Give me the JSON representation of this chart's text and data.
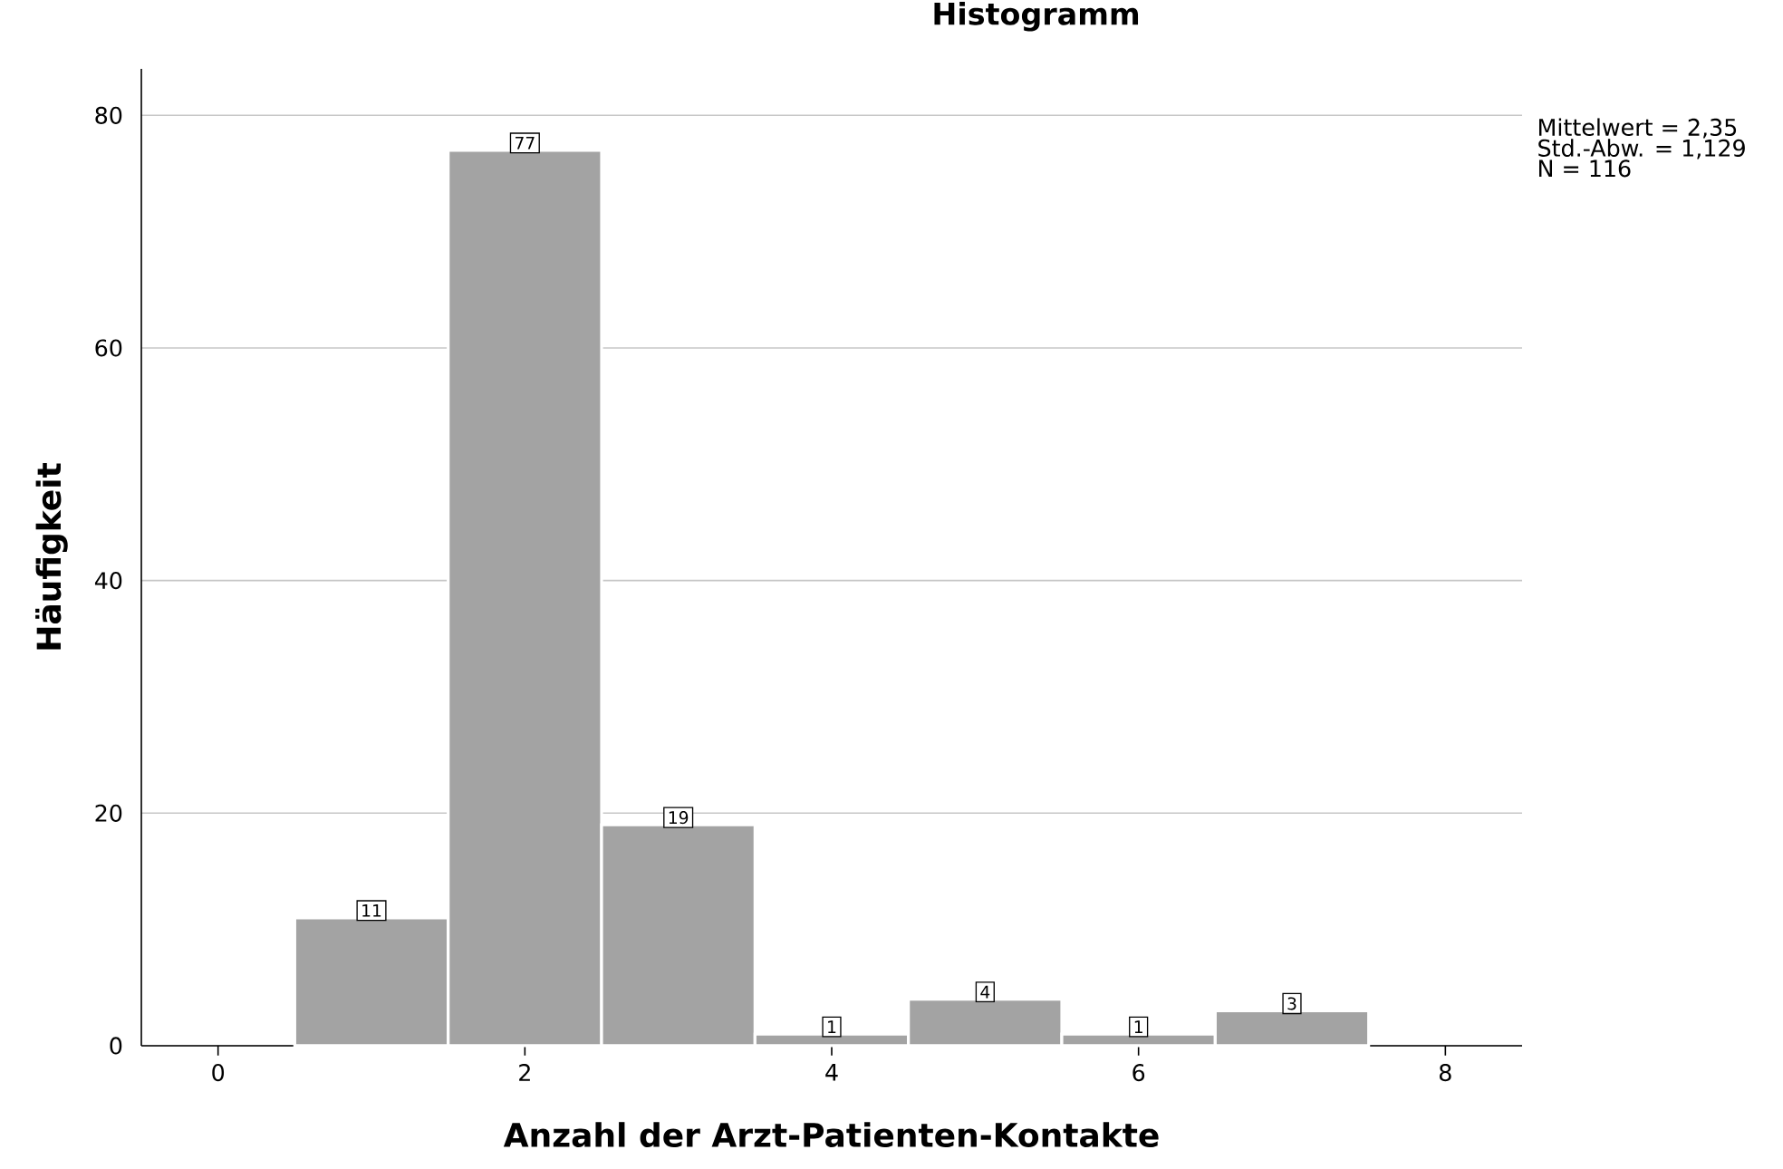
{
  "chart_data": {
    "type": "histogram",
    "title": "Histogramm",
    "xlabel": "Anzahl der Arzt-Patienten-Kontakte",
    "ylabel": "Häufigkeit",
    "bins": [
      0.5,
      1.5,
      2.5,
      3.5,
      4.5,
      5.5,
      6.5,
      7.5
    ],
    "values": [
      11,
      77,
      19,
      1,
      4,
      1,
      3
    ],
    "color": "#a3a3a3",
    "xlim": [
      -0.5,
      8.5
    ],
    "ylim": [
      0,
      84
    ],
    "xticks": [
      0,
      2,
      4,
      6,
      8
    ],
    "yticks": [
      0,
      20,
      40,
      60,
      80
    ],
    "grid": "y",
    "data_labels": true,
    "annotations": [
      "Mittelwert = 2,35",
      "Std.-Abw. = 1,129",
      "N = 116"
    ]
  }
}
